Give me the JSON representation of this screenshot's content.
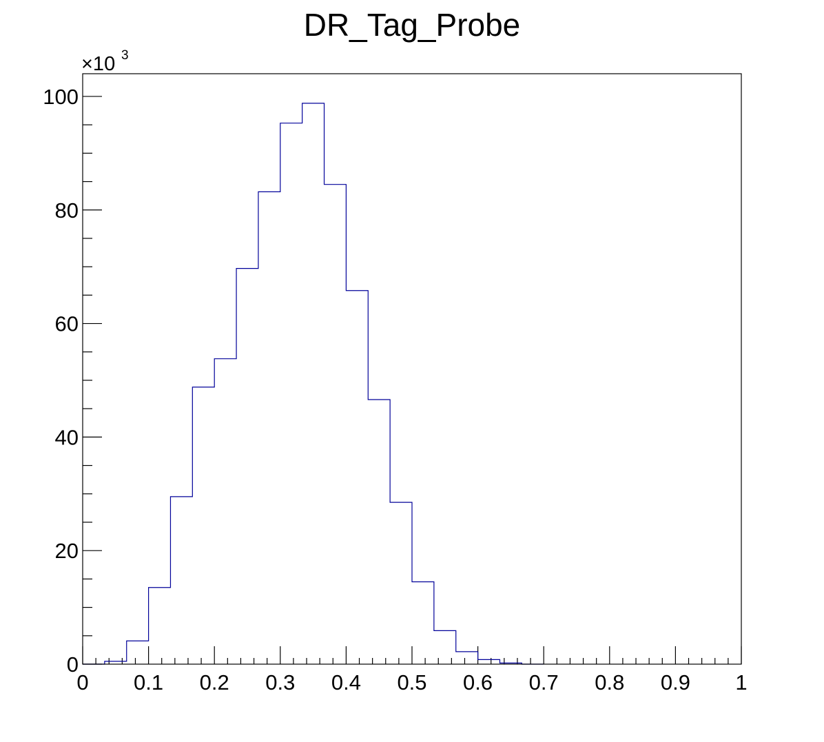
{
  "chart_data": {
    "type": "histogram",
    "title": "DR_Tag_Probe",
    "y_multiplier": "×10",
    "y_multiplier_exp": "3",
    "xlim": [
      0,
      1
    ],
    "ylim": [
      0,
      104
    ],
    "bin_width": 0.0333333,
    "x_ticks": [
      {
        "value": 0,
        "label": "0"
      },
      {
        "value": 0.1,
        "label": "0.1"
      },
      {
        "value": 0.2,
        "label": "0.2"
      },
      {
        "value": 0.3,
        "label": "0.3"
      },
      {
        "value": 0.4,
        "label": "0.4"
      },
      {
        "value": 0.5,
        "label": "0.5"
      },
      {
        "value": 0.6,
        "label": "0.6"
      },
      {
        "value": 0.7,
        "label": "0.7"
      },
      {
        "value": 0.8,
        "label": "0.8"
      },
      {
        "value": 0.9,
        "label": "0.9"
      },
      {
        "value": 1,
        "label": "1"
      }
    ],
    "y_ticks": [
      {
        "value": 0,
        "label": "0"
      },
      {
        "value": 20,
        "label": "20"
      },
      {
        "value": 40,
        "label": "40"
      },
      {
        "value": 60,
        "label": "60"
      },
      {
        "value": 80,
        "label": "80"
      },
      {
        "value": 100,
        "label": "100"
      }
    ],
    "bins": [
      {
        "low": 0.0,
        "high": 0.0333333,
        "value": 0
      },
      {
        "low": 0.0333333,
        "high": 0.0666667,
        "value": 0.5
      },
      {
        "low": 0.0666667,
        "high": 0.1,
        "value": 4.1
      },
      {
        "low": 0.1,
        "high": 0.1333333,
        "value": 13.5
      },
      {
        "low": 0.1333333,
        "high": 0.1666667,
        "value": 29.5
      },
      {
        "low": 0.1666667,
        "high": 0.2,
        "value": 48.8
      },
      {
        "low": 0.2,
        "high": 0.2333333,
        "value": 53.8
      },
      {
        "low": 0.2333333,
        "high": 0.2666667,
        "value": 69.7
      },
      {
        "low": 0.2666667,
        "high": 0.3,
        "value": 83.2
      },
      {
        "low": 0.3,
        "high": 0.3333333,
        "value": 95.3
      },
      {
        "low": 0.3333333,
        "high": 0.3666667,
        "value": 98.8
      },
      {
        "low": 0.3666667,
        "high": 0.4,
        "value": 84.5
      },
      {
        "low": 0.4,
        "high": 0.4333333,
        "value": 65.8
      },
      {
        "low": 0.4333333,
        "high": 0.4666667,
        "value": 46.6
      },
      {
        "low": 0.4666667,
        "high": 0.5,
        "value": 28.5
      },
      {
        "low": 0.5,
        "high": 0.5333333,
        "value": 14.5
      },
      {
        "low": 0.5333333,
        "high": 0.5666667,
        "value": 5.9
      },
      {
        "low": 0.5666667,
        "high": 0.6,
        "value": 2.2
      },
      {
        "low": 0.6,
        "high": 0.6333333,
        "value": 0.8
      },
      {
        "low": 0.6333333,
        "high": 0.6666667,
        "value": 0.2
      },
      {
        "low": 0.6666667,
        "high": 0.7,
        "value": 0
      }
    ],
    "line_color": "#000099",
    "grid": false,
    "legend": "none"
  }
}
